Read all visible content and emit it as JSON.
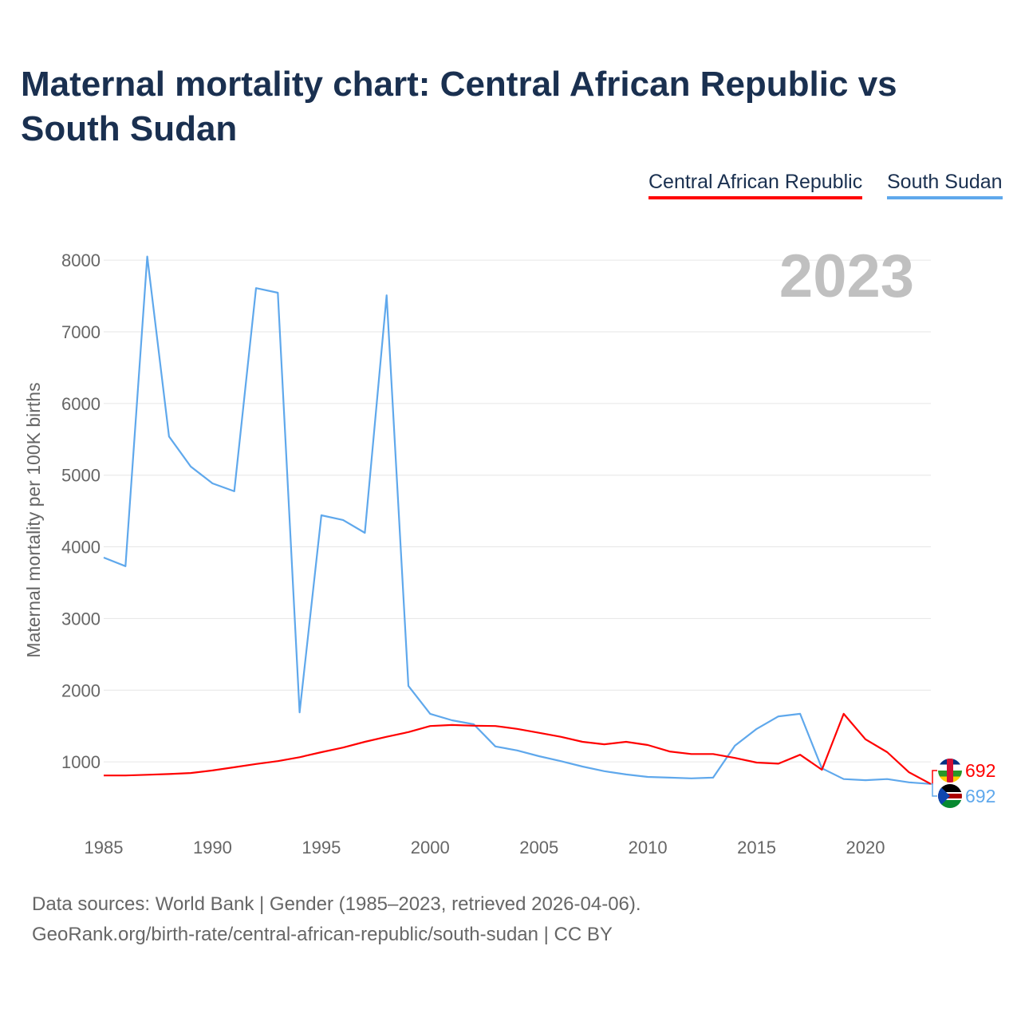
{
  "title": "Maternal mortality chart: Central African Republic vs South Sudan",
  "chart_data": {
    "type": "line",
    "title": "Maternal mortality chart: Central African Republic vs South Sudan",
    "xlabel": "",
    "ylabel": "Maternal mortality per 100K births",
    "xlim": [
      1985,
      2023
    ],
    "ylim": [
      0,
      8000
    ],
    "xticks": [
      "1985",
      "1990",
      "1995",
      "2000",
      "2005",
      "2010",
      "2015",
      "2020"
    ],
    "yticks": [
      "1000",
      "2000",
      "3000",
      "4000",
      "5000",
      "6000",
      "7000",
      "8000"
    ],
    "grid": true,
    "legend_position": "top-right",
    "year_label": "2023",
    "x": [
      1985,
      1986,
      1987,
      1988,
      1989,
      1990,
      1991,
      1992,
      1993,
      1994,
      1995,
      1996,
      1997,
      1998,
      1999,
      2000,
      2001,
      2002,
      2003,
      2004,
      2005,
      2006,
      2007,
      2008,
      2009,
      2010,
      2011,
      2012,
      2013,
      2014,
      2015,
      2016,
      2017,
      2018,
      2019,
      2020,
      2021,
      2022,
      2023
    ],
    "series": [
      {
        "name": "Central African Republic",
        "color": "#ff0000",
        "end_label": "692",
        "values": [
          810,
          810,
          820,
          830,
          845,
          880,
          925,
          970,
          1010,
          1065,
          1135,
          1200,
          1280,
          1350,
          1415,
          1500,
          1515,
          1505,
          1500,
          1460,
          1405,
          1350,
          1280,
          1245,
          1280,
          1235,
          1145,
          1110,
          1110,
          1055,
          990,
          975,
          1100,
          890,
          1670,
          1315,
          1135,
          855,
          692
        ]
      },
      {
        "name": "South Sudan",
        "color": "#5fa8ec",
        "end_label": "692",
        "values": [
          3850,
          3730,
          8050,
          5540,
          5120,
          4885,
          4775,
          7610,
          7545,
          1690,
          4440,
          4375,
          4195,
          7510,
          2060,
          1670,
          1580,
          1525,
          1215,
          1160,
          1080,
          1010,
          935,
          870,
          825,
          790,
          780,
          770,
          780,
          1225,
          1460,
          1635,
          1670,
          910,
          760,
          745,
          760,
          715,
          692
        ]
      }
    ]
  },
  "footer": {
    "source": "Data sources: World Bank | Gender (1985–2023, retrieved 2026-04-06).",
    "link": "GeoRank.org/birth-rate/central-african-republic/south-sudan | CC BY"
  }
}
